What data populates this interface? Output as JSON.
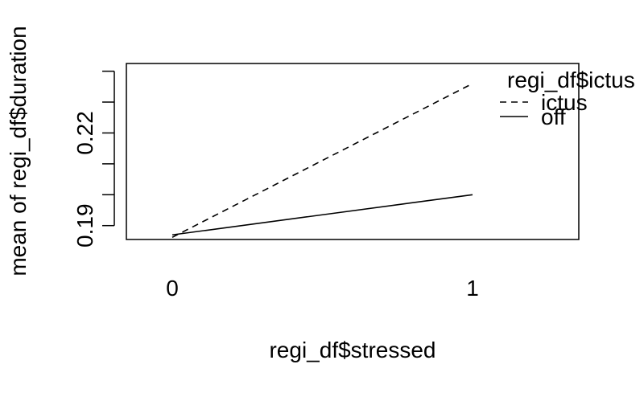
{
  "chart_data": {
    "type": "line",
    "title": "",
    "xlabel": "regi_df$stressed",
    "ylabel": "mean of  regi_df$duration",
    "x": [
      "0",
      "1"
    ],
    "series": [
      {
        "name": "ictus",
        "linestyle": "dashed",
        "values": [
          0.1862,
          0.236
        ]
      },
      {
        "name": "off",
        "linestyle": "solid",
        "values": [
          0.187,
          0.2
        ]
      }
    ],
    "xticks": [
      "0",
      "1"
    ],
    "yticks": [
      0.19,
      0.22
    ],
    "ylim": [
      0.1855,
      0.2425
    ],
    "legend": {
      "title": "regi_df$ictus",
      "placement": "top-right, outside plot area",
      "entries": [
        "ictus",
        "off"
      ]
    },
    "grid": false,
    "colors": {
      "line": "#000000",
      "background": "#ffffff"
    }
  }
}
